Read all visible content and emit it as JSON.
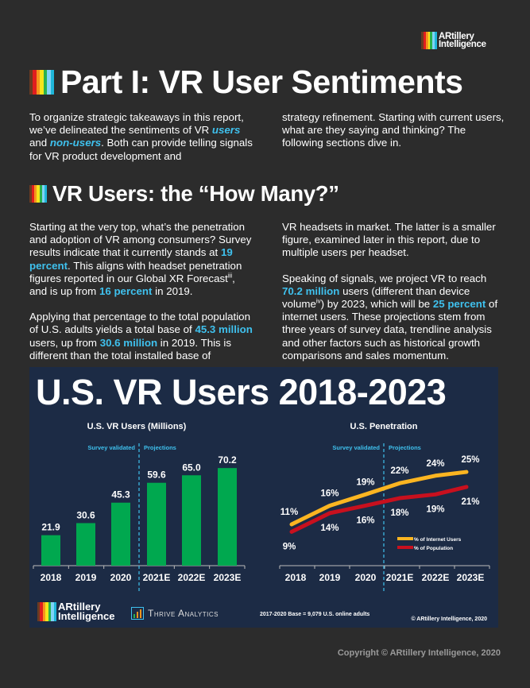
{
  "logo": {
    "line1": "ARtillery",
    "line2": "Intelligence"
  },
  "rainbow": [
    "#6b3b22",
    "#e01e1e",
    "#f7941d",
    "#f6e51a",
    "#2bb24c",
    "#7fd3f7",
    "#1fb6d9"
  ],
  "heading1": "Part I: VR User Sentiments",
  "intro": {
    "left": [
      [
        {
          "t": "To organize strategic takeaways in this report, we’ve delineated the sentiments of VR "
        },
        {
          "t": "users",
          "s": "em"
        },
        {
          "t": " and "
        },
        {
          "t": "non-users",
          "s": "em"
        },
        {
          "t": ". Both can provide telling signals for VR product development and"
        }
      ]
    ],
    "right": [
      [
        {
          "t": "strategy refinement. Starting with current users, what are they saying and thinking? The following sections dive in."
        }
      ]
    ]
  },
  "heading2": "VR Users: the “How Many?”",
  "body": {
    "left": [
      [
        {
          "t": "Starting at the very top, what’s the penetration and adoption of VR among consumers? Survey results indicate that it currently stands at "
        },
        {
          "t": "19 percent",
          "s": "hl"
        },
        {
          "t": ". This aligns with headset penetration figures reported in our Global XR Forecast"
        },
        {
          "t": "iii",
          "s": "sup"
        },
        {
          "t": ", and is up from "
        },
        {
          "t": "16 percent",
          "s": "hl"
        },
        {
          "t": " in 2019."
        }
      ],
      [
        {
          "t": "Applying that percentage to the total population of U.S. adults yields a total base of "
        },
        {
          "t": "45.3 million",
          "s": "hl"
        },
        {
          "t": " users, up from "
        },
        {
          "t": "30.6 million",
          "s": "hl"
        },
        {
          "t": " in 2019. This is different than the total installed base of"
        }
      ]
    ],
    "right": [
      [
        {
          "t": "VR headsets in market. The latter is a smaller figure, examined later in this report, due to multiple users per headset."
        }
      ],
      [
        {
          "t": "Speaking of signals, we project VR to reach "
        },
        {
          "t": "70.2 million",
          "s": "hl"
        },
        {
          "t": " users (different than device volume"
        },
        {
          "t": "iv",
          "s": "sup"
        },
        {
          "t": ") by 2023, which will be "
        },
        {
          "t": "25 percent",
          "s": "hl"
        },
        {
          "t": " of internet users. These projections stem from three years of survey data, trendline analysis and other factors such as historical growth comparisons and sales momentum."
        }
      ]
    ]
  },
  "infographic": {
    "title": "U.S. VR Users 2018-2023",
    "survey_label": "Survey validated",
    "projection_label": "Projections",
    "base_note": "2017-2020 Base = 9,079 U.S. online adults",
    "copyright": "© ARtillery Intelligence, 2020",
    "thrive": "Thrive Analytics",
    "colors": {
      "bar": "#00a84f",
      "internet": "#fbb521",
      "population": "#c8101e",
      "accent": "#3fc1ee"
    }
  },
  "chart_data": [
    {
      "type": "bar",
      "title": "U.S. VR Users (Millions)",
      "categories": [
        "2018",
        "2019",
        "2020",
        "2021E",
        "2022E",
        "2023E"
      ],
      "values": [
        21.9,
        30.6,
        45.3,
        59.6,
        65.0,
        70.2
      ],
      "labels": [
        "21.9",
        "30.6",
        "45.3",
        "59.6",
        "65.0",
        "70.2"
      ],
      "ylim": [
        0,
        80
      ]
    },
    {
      "type": "line",
      "title": "U.S. Penetration",
      "categories": [
        "2018",
        "2019",
        "2020",
        "2021E",
        "2022E",
        "2023E"
      ],
      "series": [
        {
          "name": "% of Internet Users",
          "values": [
            11,
            16,
            19,
            22,
            24,
            25
          ]
        },
        {
          "name": "% of Population",
          "values": [
            9,
            14,
            16,
            18,
            19,
            21
          ]
        }
      ],
      "legend": "right"
    }
  ],
  "footer": "Copyright © ARtillery Intelligence, 2020"
}
